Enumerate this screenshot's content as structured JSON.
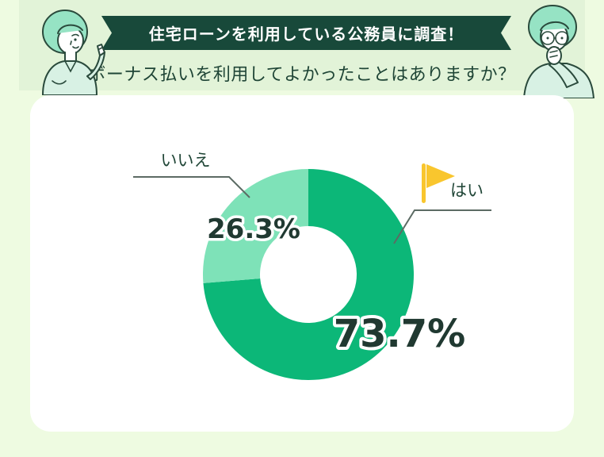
{
  "page": {
    "background_color": "#eefbe1",
    "header_band_color": "#e2f3d8",
    "card_color": "#ffffff"
  },
  "header": {
    "ribbon": {
      "text": "住宅ローンを利用している公務員に調査！",
      "bg_color": "#18493a",
      "text_color": "#ffffff"
    },
    "subtitle": "ボーナス払いを利用してよかったことはありますか？"
  },
  "chart_data": {
    "type": "pie",
    "variant": "donut",
    "title": "ボーナス払いを利用してよかったことはありますか？",
    "categories": [
      "はい",
      "いいえ"
    ],
    "values": [
      73.7,
      26.3
    ],
    "unit": "%",
    "labels": [
      "73.7%",
      "26.3%"
    ],
    "colors": [
      "#0cb778",
      "#7ee2b8"
    ],
    "start_angle": "top",
    "direction": "clockwise",
    "legend_position": "callout-labels",
    "inner_hole_color": "#ffffff"
  },
  "chart": {
    "yes_label": "はい",
    "yes_value": "73.7%",
    "no_label": "いいえ",
    "no_value": "26.3%",
    "flag_color": "#f9c62e",
    "leader_line_color": "#5c6b64",
    "value_text_color": "#203931"
  },
  "illustrations": {
    "left": "woman-pointing",
    "right": "man-thinking-glasses",
    "hair_color": "#96e3c4",
    "shirt_color": "#d8f1e4",
    "outline_color": "#2a4a3c"
  }
}
